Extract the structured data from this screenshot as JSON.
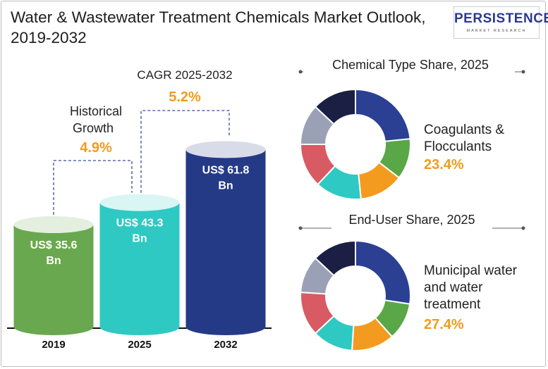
{
  "title": "Water & Wastewater Treatment Chemicals Market Outlook, 2019-2032",
  "logo": {
    "main": "PERSISTENCE",
    "sub": "MARKET RESEARCH"
  },
  "colors": {
    "bar_2019": "#6aa84f",
    "bar_2025": "#2ec9c3",
    "bar_2032": "#243a87",
    "accent": "#f39b1f",
    "dash": "#3d4aa0",
    "donut_gray": "#9aa0b5",
    "donut_red": "#d85a63",
    "donut_green": "#5aa747",
    "donut_orange": "#f39b1f",
    "donut_teal": "#2ec9c3",
    "donut_blue": "#2b3f93",
    "donut_navy": "#1b1f44"
  },
  "chart_data": [
    {
      "type": "bar",
      "categories": [
        "2019",
        "2025",
        "2032"
      ],
      "values": [
        35.6,
        43.3,
        61.8
      ],
      "value_labels": [
        "US$ 35.6 Bn",
        "US$ 43.3 Bn",
        "US$ 61.8 Bn"
      ],
      "annotations": [
        {
          "label": "Historical Growth",
          "value": "4.9%",
          "from": "2019",
          "to": "2025"
        },
        {
          "label": "CAGR 2025-2032",
          "value": "5.2%",
          "from": "2025",
          "to": "2032"
        }
      ]
    },
    {
      "type": "pie",
      "title": "Chemical Type Share, 2025",
      "highlight": {
        "label": "Coagulants & Flocculants",
        "value": "23.4%"
      },
      "slices": [
        {
          "value": 23.4,
          "color": "#2b3f93"
        },
        {
          "value": 12.0,
          "color": "#5aa747"
        },
        {
          "value": 13.0,
          "color": "#f39b1f"
        },
        {
          "value": 13.6,
          "color": "#2ec9c3"
        },
        {
          "value": 13.0,
          "color": "#d85a63"
        },
        {
          "value": 12.0,
          "color": "#9aa0b5"
        },
        {
          "value": 13.0,
          "color": "#1b1f44"
        }
      ]
    },
    {
      "type": "pie",
      "title": "End-User Share, 2025",
      "highlight": {
        "label": "Municipal water and water treatment",
        "value": "27.4%"
      },
      "slices": [
        {
          "value": 27.4,
          "color": "#2b3f93"
        },
        {
          "value": 11.0,
          "color": "#5aa747"
        },
        {
          "value": 12.6,
          "color": "#f39b1f"
        },
        {
          "value": 12.0,
          "color": "#2ec9c3"
        },
        {
          "value": 13.0,
          "color": "#d85a63"
        },
        {
          "value": 11.0,
          "color": "#9aa0b5"
        },
        {
          "value": 13.0,
          "color": "#1b1f44"
        }
      ]
    }
  ]
}
